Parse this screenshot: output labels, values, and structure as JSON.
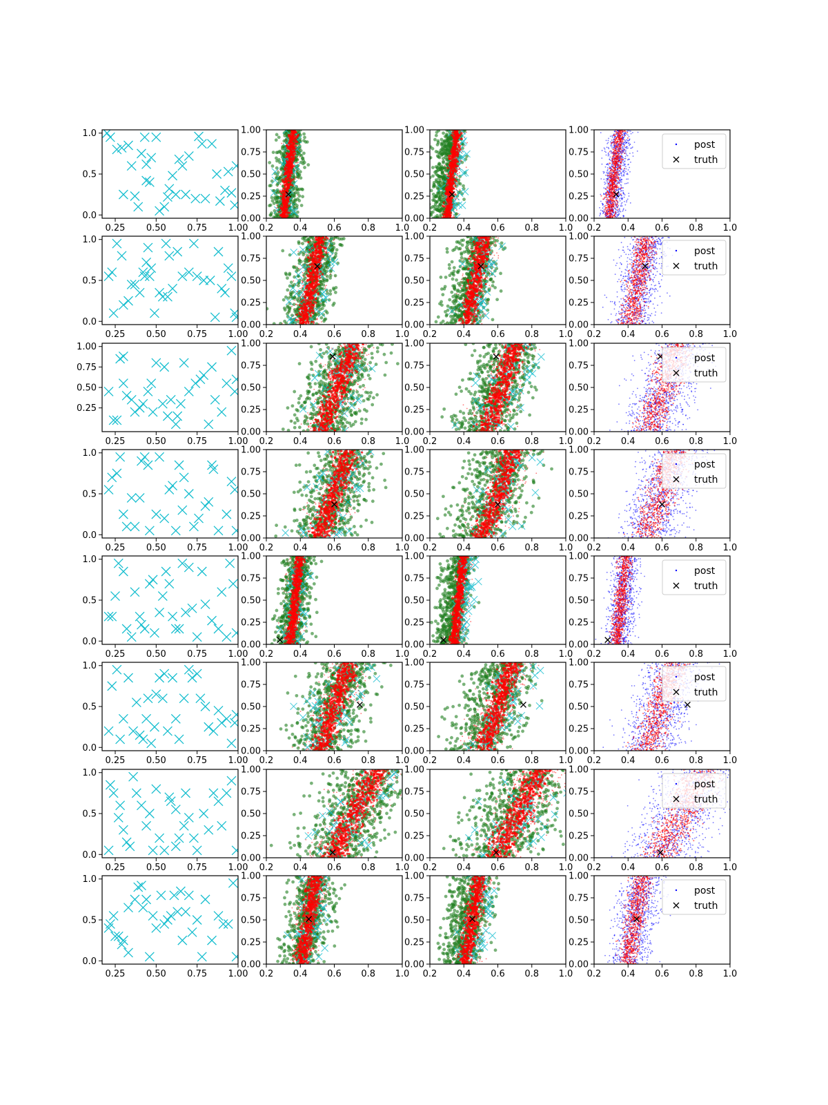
{
  "chart_data": {
    "type": "scatter",
    "grid": false,
    "layout": {
      "rows": 8,
      "cols": 4
    },
    "colors": {
      "design": "#17becf",
      "post": "#0000ff",
      "post_red": "#ff0000",
      "green": "#1f7f1f",
      "truth": "#000000",
      "axes": "#000000"
    },
    "legend": {
      "location": "upper right",
      "entries": [
        "post",
        "truth"
      ],
      "rows_with_legend": [
        0,
        1,
        2,
        3,
        4,
        5,
        6,
        7
      ]
    },
    "xlim": [
      0.2,
      1.0
    ],
    "ylim": [
      0.0,
      1.0
    ],
    "x_ticks": [
      "0.2",
      "0.4",
      "0.6",
      "0.8",
      "1.0"
    ],
    "y_ticks": [
      "0.00",
      "0.25",
      "0.50",
      "0.75",
      "1.00"
    ],
    "design_panels": {
      "x_ticks": [
        "0.25",
        "0.50",
        "0.75",
        "1.00"
      ],
      "y_ticks": [
        "0.0",
        "0.5",
        "1.0"
      ],
      "row3_y_ticks": [
        "0.25",
        "0.50",
        "0.75",
        "1.00"
      ]
    },
    "rows": [
      {
        "truth": [
          0.33,
          0.27
        ],
        "slope": 0.06,
        "w": 0.04,
        "center": 0.33,
        "design": [
          [
            0.2,
            1.0
          ],
          [
            0.22,
            0.95
          ],
          [
            0.26,
            0.8
          ],
          [
            0.29,
            0.82
          ],
          [
            0.3,
            0.25
          ],
          [
            0.33,
            0.85
          ],
          [
            0.35,
            0.6
          ],
          [
            0.37,
            0.23
          ],
          [
            0.39,
            0.1
          ],
          [
            0.41,
            0.75
          ],
          [
            0.43,
            0.95
          ],
          [
            0.44,
            0.42
          ],
          [
            0.46,
            0.4
          ],
          [
            0.47,
            0.7
          ],
          [
            0.5,
            0.95
          ],
          [
            0.52,
            0.05
          ],
          [
            0.55,
            0.1
          ],
          [
            0.57,
            0.22
          ],
          [
            0.58,
            0.32
          ],
          [
            0.6,
            0.48
          ],
          [
            0.62,
            0.25
          ],
          [
            0.64,
            0.68
          ],
          [
            0.66,
            0.6
          ],
          [
            0.68,
            0.25
          ],
          [
            0.7,
            0.72
          ],
          [
            0.76,
            0.96
          ],
          [
            0.78,
            0.87
          ],
          [
            0.8,
            0.2
          ],
          [
            0.84,
            0.87
          ],
          [
            0.87,
            0.5
          ],
          [
            0.89,
            0.17
          ],
          [
            0.92,
            0.3
          ],
          [
            0.94,
            0.53
          ],
          [
            0.96,
            0.27
          ],
          [
            0.98,
            0.12
          ],
          [
            0.99,
            0.6
          ],
          [
            0.44,
            0.62
          ],
          [
            0.74,
            0.2
          ]
        ]
      },
      {
        "truth": [
          0.5,
          0.66
        ],
        "slope": 0.1,
        "w": 0.07,
        "center": 0.47,
        "design": [
          [
            0.21,
            0.55
          ],
          [
            0.23,
            0.6
          ],
          [
            0.24,
            0.1
          ],
          [
            0.26,
            0.95
          ],
          [
            0.29,
            0.8
          ],
          [
            0.3,
            0.2
          ],
          [
            0.33,
            0.25
          ],
          [
            0.35,
            0.45
          ],
          [
            0.37,
            0.45
          ],
          [
            0.4,
            0.35
          ],
          [
            0.42,
            0.6
          ],
          [
            0.44,
            0.72
          ],
          [
            0.45,
            0.9
          ],
          [
            0.46,
            0.55
          ],
          [
            0.47,
            0.65
          ],
          [
            0.49,
            0.1
          ],
          [
            0.52,
            0.35
          ],
          [
            0.54,
            0.3
          ],
          [
            0.56,
            0.95
          ],
          [
            0.58,
            0.8
          ],
          [
            0.6,
            0.4
          ],
          [
            0.63,
            0.85
          ],
          [
            0.66,
            0.55
          ],
          [
            0.7,
            0.6
          ],
          [
            0.73,
            0.95
          ],
          [
            0.75,
            0.55
          ],
          [
            0.79,
            0.5
          ],
          [
            0.83,
            0.5
          ],
          [
            0.86,
            0.05
          ],
          [
            0.88,
            0.85
          ],
          [
            0.9,
            0.4
          ],
          [
            0.92,
            0.35
          ],
          [
            0.94,
            0.65
          ],
          [
            0.96,
            0.55
          ],
          [
            0.98,
            0.1
          ],
          [
            0.99,
            0.05
          ],
          [
            0.43,
            0.55
          ],
          [
            0.57,
            0.3
          ]
        ]
      },
      {
        "truth": [
          0.59,
          0.85
        ],
        "slope": 0.18,
        "w": 0.1,
        "center": 0.62,
        "design": [
          [
            0.21,
            0.45
          ],
          [
            0.24,
            0.1
          ],
          [
            0.26,
            0.1
          ],
          [
            0.28,
            0.85
          ],
          [
            0.3,
            0.55
          ],
          [
            0.32,
            0.4
          ],
          [
            0.35,
            0.35
          ],
          [
            0.37,
            0.2
          ],
          [
            0.4,
            0.25
          ],
          [
            0.42,
            0.3
          ],
          [
            0.45,
            0.45
          ],
          [
            0.47,
            0.55
          ],
          [
            0.5,
            0.8
          ],
          [
            0.54,
            0.3
          ],
          [
            0.55,
            0.75
          ],
          [
            0.57,
            0.15
          ],
          [
            0.59,
            0.35
          ],
          [
            0.62,
            0.05
          ],
          [
            0.63,
            0.15
          ],
          [
            0.65,
            0.3
          ],
          [
            0.67,
            0.8
          ],
          [
            0.7,
            0.45
          ],
          [
            0.74,
            0.55
          ],
          [
            0.77,
            0.6
          ],
          [
            0.79,
            0.65
          ],
          [
            0.82,
            0.05
          ],
          [
            0.84,
            0.75
          ],
          [
            0.86,
            0.35
          ],
          [
            0.9,
            0.2
          ],
          [
            0.93,
            0.55
          ],
          [
            0.96,
            0.95
          ],
          [
            0.98,
            0.45
          ],
          [
            0.99,
            0.6
          ],
          [
            0.3,
            0.88
          ],
          [
            0.48,
            0.2
          ]
        ]
      },
      {
        "truth": [
          0.6,
          0.38
        ],
        "slope": 0.18,
        "w": 0.1,
        "center": 0.6,
        "design": [
          [
            0.21,
            0.55
          ],
          [
            0.23,
            0.7
          ],
          [
            0.26,
            0.75
          ],
          [
            0.28,
            0.95
          ],
          [
            0.3,
            0.25
          ],
          [
            0.32,
            0.1
          ],
          [
            0.35,
            0.45
          ],
          [
            0.37,
            0.1
          ],
          [
            0.4,
            0.45
          ],
          [
            0.41,
            0.9
          ],
          [
            0.43,
            0.95
          ],
          [
            0.45,
            0.85
          ],
          [
            0.46,
            0.05
          ],
          [
            0.5,
            0.25
          ],
          [
            0.55,
            0.2
          ],
          [
            0.58,
            0.55
          ],
          [
            0.6,
            0.6
          ],
          [
            0.62,
            0.05
          ],
          [
            0.64,
            0.85
          ],
          [
            0.67,
            0.7
          ],
          [
            0.7,
            0.5
          ],
          [
            0.73,
            0.1
          ],
          [
            0.76,
            0.2
          ],
          [
            0.8,
            0.35
          ],
          [
            0.82,
            0.4
          ],
          [
            0.84,
            0.85
          ],
          [
            0.85,
            0.8
          ],
          [
            0.88,
            0.05
          ],
          [
            0.93,
            0.25
          ],
          [
            0.96,
            0.65
          ],
          [
            0.98,
            0.55
          ],
          [
            0.99,
            0.05
          ],
          [
            0.52,
            0.95
          ],
          [
            0.66,
            0.3
          ]
        ]
      },
      {
        "truth": [
          0.28,
          0.05
        ],
        "slope": 0.06,
        "w": 0.045,
        "center": 0.37,
        "design": [
          [
            0.21,
            0.3
          ],
          [
            0.23,
            0.3
          ],
          [
            0.25,
            0.55
          ],
          [
            0.27,
            0.95
          ],
          [
            0.3,
            0.85
          ],
          [
            0.32,
            0.15
          ],
          [
            0.35,
            0.05
          ],
          [
            0.37,
            0.6
          ],
          [
            0.4,
            0.3
          ],
          [
            0.41,
            0.2
          ],
          [
            0.43,
            0.15
          ],
          [
            0.46,
            0.7
          ],
          [
            0.48,
            0.75
          ],
          [
            0.49,
            0.1
          ],
          [
            0.52,
            0.35
          ],
          [
            0.54,
            0.55
          ],
          [
            0.56,
            0.85
          ],
          [
            0.58,
            0.7
          ],
          [
            0.62,
            0.15
          ],
          [
            0.64,
            0.15
          ],
          [
            0.66,
            0.95
          ],
          [
            0.68,
            0.35
          ],
          [
            0.7,
            0.9
          ],
          [
            0.72,
            0.4
          ],
          [
            0.75,
            0.05
          ],
          [
            0.78,
            0.85
          ],
          [
            0.8,
            0.45
          ],
          [
            0.84,
            0.25
          ],
          [
            0.88,
            0.15
          ],
          [
            0.9,
            0.6
          ],
          [
            0.93,
            0.05
          ],
          [
            0.95,
            0.95
          ],
          [
            0.97,
            0.7
          ],
          [
            0.99,
            0.1
          ],
          [
            0.6,
            0.3
          ]
        ]
      },
      {
        "truth": [
          0.75,
          0.52
        ],
        "slope": 0.17,
        "w": 0.1,
        "center": 0.6,
        "design": [
          [
            0.21,
            0.2
          ],
          [
            0.23,
            0.75
          ],
          [
            0.26,
            0.95
          ],
          [
            0.28,
            0.1
          ],
          [
            0.3,
            0.35
          ],
          [
            0.33,
            0.85
          ],
          [
            0.36,
            0.2
          ],
          [
            0.38,
            0.55
          ],
          [
            0.4,
            0.15
          ],
          [
            0.42,
            0.1
          ],
          [
            0.44,
            0.35
          ],
          [
            0.45,
            0.6
          ],
          [
            0.47,
            0.05
          ],
          [
            0.5,
            0.65
          ],
          [
            0.52,
            0.85
          ],
          [
            0.54,
            0.6
          ],
          [
            0.55,
            0.9
          ],
          [
            0.57,
            0.2
          ],
          [
            0.6,
            0.85
          ],
          [
            0.62,
            0.35
          ],
          [
            0.64,
            0.1
          ],
          [
            0.67,
            0.6
          ],
          [
            0.7,
            0.95
          ],
          [
            0.72,
            0.85
          ],
          [
            0.75,
            0.9
          ],
          [
            0.77,
            0.6
          ],
          [
            0.8,
            0.5
          ],
          [
            0.82,
            0.25
          ],
          [
            0.85,
            0.2
          ],
          [
            0.88,
            0.45
          ],
          [
            0.9,
            0.3
          ],
          [
            0.93,
            0.35
          ],
          [
            0.96,
            0.05
          ],
          [
            0.98,
            0.3
          ],
          [
            0.99,
            0.4
          ],
          [
            0.49,
            0.25
          ]
        ]
      },
      {
        "truth": [
          0.59,
          0.06
        ],
        "slope": 0.26,
        "w": 0.13,
        "center": 0.72,
        "design": [
          [
            0.21,
            0.05
          ],
          [
            0.22,
            0.85
          ],
          [
            0.24,
            0.75
          ],
          [
            0.27,
            0.45
          ],
          [
            0.28,
            0.6
          ],
          [
            0.3,
            0.3
          ],
          [
            0.32,
            0.15
          ],
          [
            0.34,
            0.1
          ],
          [
            0.36,
            0.95
          ],
          [
            0.38,
            0.75
          ],
          [
            0.41,
            0.6
          ],
          [
            0.44,
            0.35
          ],
          [
            0.46,
            0.5
          ],
          [
            0.48,
            0.05
          ],
          [
            0.5,
            0.8
          ],
          [
            0.52,
            0.2
          ],
          [
            0.55,
            0.05
          ],
          [
            0.58,
            0.7
          ],
          [
            0.59,
            0.65
          ],
          [
            0.62,
            0.1
          ],
          [
            0.64,
            0.2
          ],
          [
            0.67,
            0.35
          ],
          [
            0.68,
            0.75
          ],
          [
            0.7,
            0.45
          ],
          [
            0.73,
            0.2
          ],
          [
            0.75,
            0.05
          ],
          [
            0.79,
            0.5
          ],
          [
            0.82,
            0.3
          ],
          [
            0.85,
            0.75
          ],
          [
            0.88,
            0.65
          ],
          [
            0.9,
            0.35
          ],
          [
            0.93,
            0.75
          ],
          [
            0.96,
            0.9
          ],
          [
            0.99,
            0.05
          ],
          [
            0.62,
            0.55
          ]
        ]
      },
      {
        "truth": [
          0.45,
          0.51
        ],
        "slope": 0.09,
        "w": 0.065,
        "center": 0.45,
        "design": [
          [
            0.21,
            0.4
          ],
          [
            0.22,
            0.45
          ],
          [
            0.24,
            0.55
          ],
          [
            0.25,
            0.3
          ],
          [
            0.27,
            0.3
          ],
          [
            0.29,
            0.2
          ],
          [
            0.3,
            0.25
          ],
          [
            0.33,
            0.65
          ],
          [
            0.37,
            0.75
          ],
          [
            0.39,
            0.9
          ],
          [
            0.41,
            0.92
          ],
          [
            0.42,
            0.65
          ],
          [
            0.44,
            0.75
          ],
          [
            0.46,
            0.05
          ],
          [
            0.48,
            0.55
          ],
          [
            0.5,
            0.4
          ],
          [
            0.53,
            0.8
          ],
          [
            0.55,
            0.45
          ],
          [
            0.57,
            0.5
          ],
          [
            0.59,
            0.55
          ],
          [
            0.61,
            0.8
          ],
          [
            0.63,
            0.6
          ],
          [
            0.65,
            0.85
          ],
          [
            0.66,
            0.25
          ],
          [
            0.68,
            0.6
          ],
          [
            0.7,
            0.8
          ],
          [
            0.72,
            0.35
          ],
          [
            0.75,
            0.5
          ],
          [
            0.78,
            0.05
          ],
          [
            0.8,
            0.75
          ],
          [
            0.84,
            0.25
          ],
          [
            0.88,
            0.55
          ],
          [
            0.91,
            0.45
          ],
          [
            0.94,
            0.45
          ],
          [
            0.97,
            0.95
          ],
          [
            0.99,
            0.05
          ],
          [
            0.33,
            0.1
          ]
        ]
      }
    ]
  }
}
